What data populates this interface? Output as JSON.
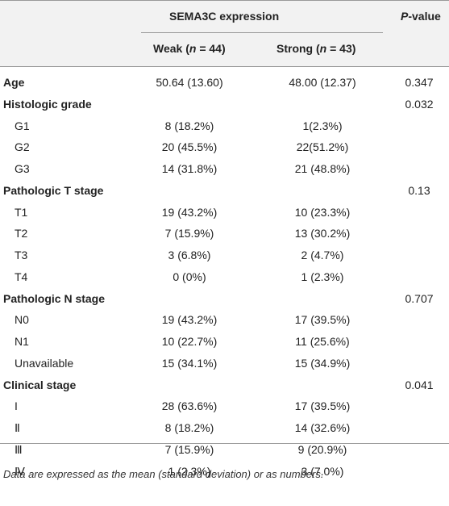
{
  "header": {
    "group": "SEMA3C expression",
    "pvalue": [
      "P",
      "-value"
    ],
    "weak": [
      "Weak (",
      "n",
      " = 44)"
    ],
    "strong": [
      "Strong (",
      "n",
      " = 43)"
    ]
  },
  "table": {
    "rows": [
      {
        "label": "Age",
        "section": true,
        "weak": "50.64 (13.60)",
        "strong": "48.00 (12.37)",
        "p": "0.347"
      },
      {
        "label": "Histologic grade",
        "section": true,
        "p": "0.032"
      },
      {
        "label": "G1",
        "weak": "8 (18.2%)",
        "strong": "1(2.3%)"
      },
      {
        "label": "G2",
        "weak": "20 (45.5%)",
        "strong": "22(51.2%)"
      },
      {
        "label": "G3",
        "weak": "14 (31.8%)",
        "strong": "21 (48.8%)"
      },
      {
        "label": "Pathologic T stage",
        "section": true,
        "p": "0.13"
      },
      {
        "label": "T1",
        "weak": "19 (43.2%)",
        "strong": "10 (23.3%)"
      },
      {
        "label": "T2",
        "weak": "7 (15.9%)",
        "strong": "13 (30.2%)"
      },
      {
        "label": "T3",
        "weak": "3 (6.8%)",
        "strong": "2 (4.7%)"
      },
      {
        "label": "T4",
        "weak": "0 (0%)",
        "strong": "1 (2.3%)"
      },
      {
        "label": "Pathologic N stage",
        "section": true,
        "p": "0.707"
      },
      {
        "label": "N0",
        "weak": "19 (43.2%)",
        "strong": "17 (39.5%)"
      },
      {
        "label": "N1",
        "weak": "10 (22.7%)",
        "strong": "11 (25.6%)"
      },
      {
        "label": "Unavailable",
        "weak": "15 (34.1%)",
        "strong": "15 (34.9%)"
      },
      {
        "label": "Clinical stage",
        "section": true,
        "p": "0.041"
      },
      {
        "label": "I",
        "weak": "28 (63.6%)",
        "strong": "17 (39.5%)"
      },
      {
        "label": "Ⅱ",
        "weak": "8 (18.2%)",
        "strong": "14 (32.6%)"
      },
      {
        "label": "Ⅲ",
        "weak": "7 (15.9%)",
        "strong": "9 (20.9%)"
      },
      {
        "label": "Ⅳ",
        "weak": "1 (2.3%)",
        "strong": "3 (7.0%)"
      }
    ]
  },
  "footnote": "Data are expressed as the mean (standard deviation) or as numbers."
}
